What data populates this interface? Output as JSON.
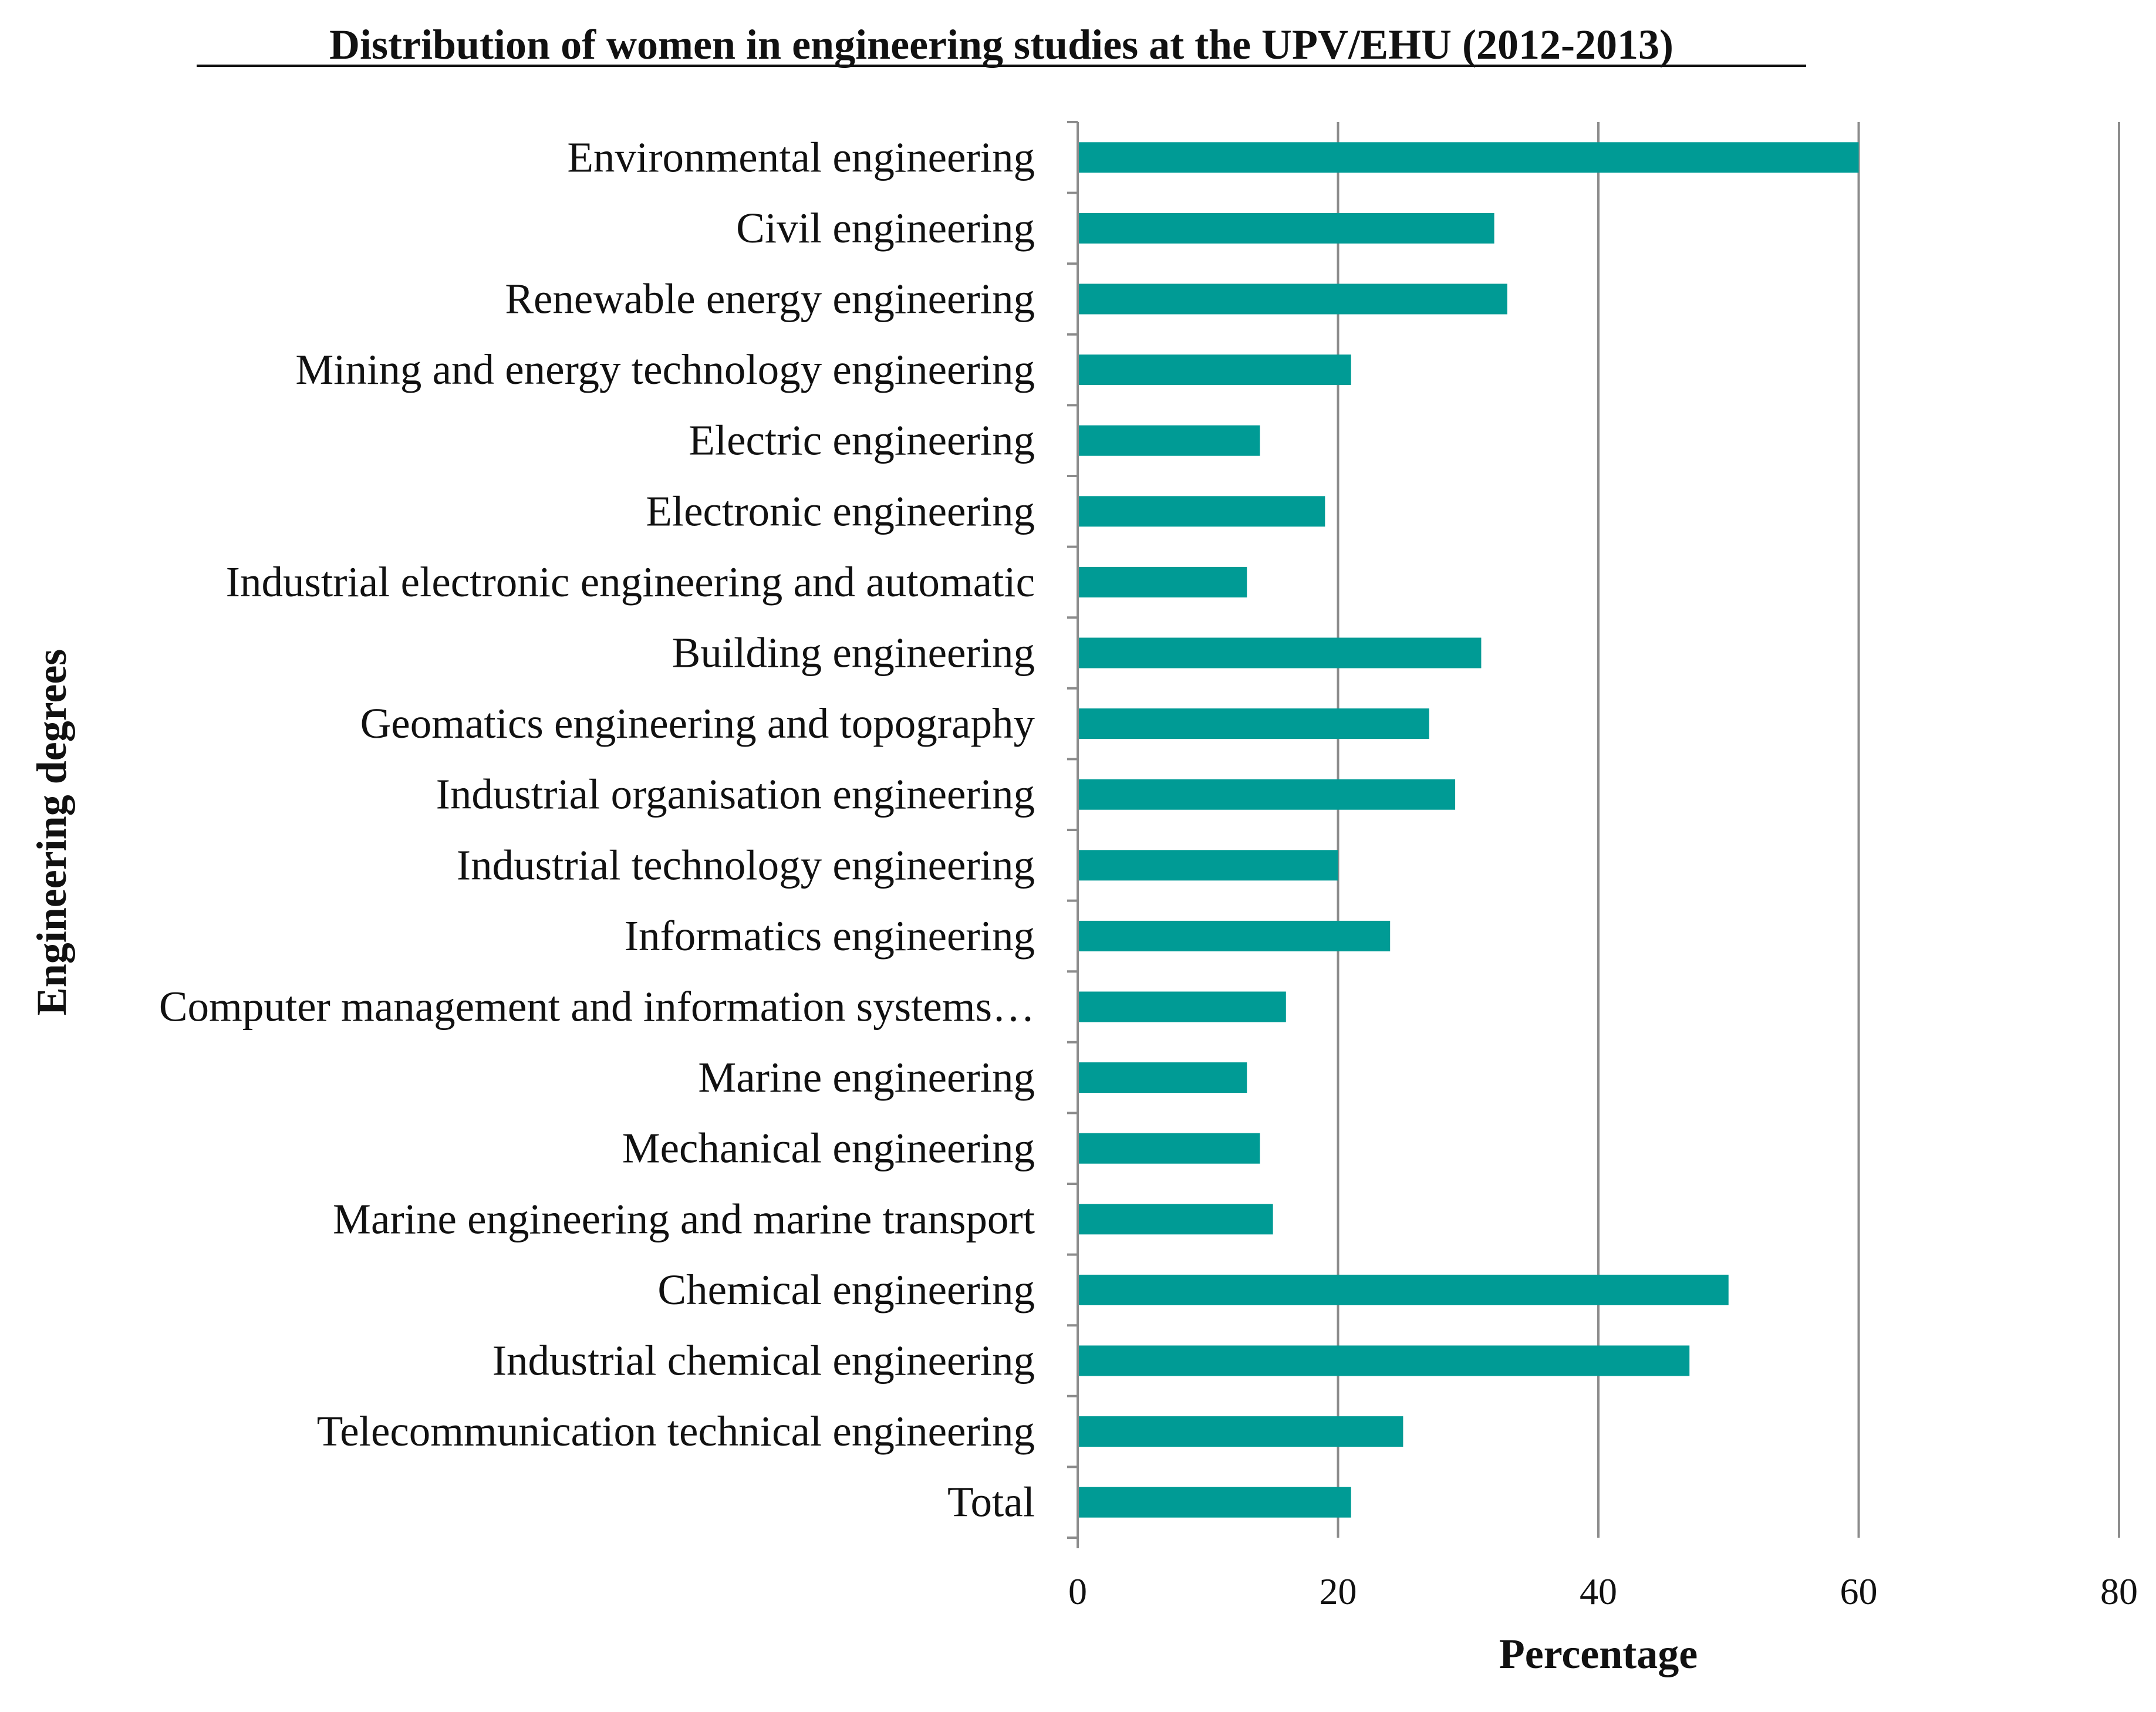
{
  "colors": {
    "bar": "#009b95",
    "grid": "#8c8c8c",
    "text": "#111111"
  },
  "chart_data": {
    "type": "bar",
    "orientation": "horizontal",
    "title": "Distribution of women in engineering studies at the UPV/EHU (2012-2013)",
    "xlabel": "Percentage",
    "ylabel": "Engineering degrees",
    "xlim": [
      0,
      80
    ],
    "xticks": [
      "0",
      "20",
      "40",
      "60",
      "80"
    ],
    "xtick_values": [
      0,
      20,
      40,
      60,
      80
    ],
    "grid": "vertical",
    "legend": "none",
    "categories": [
      "Environmental engineering",
      "Civil engineering",
      "Renewable energy engineering",
      "Mining and energy technology engineering",
      "Electric engineering",
      "Electronic engineering",
      "Industrial electronic engineering and automatic",
      "Building engineering",
      "Geomatics engineering and topography",
      "Industrial organisation engineering",
      "Industrial technology engineering",
      "Informatics engineering",
      "Computer management and information systems…",
      "Marine engineering",
      "Mechanical engineering",
      "Marine engineering and marine transport",
      "Chemical engineering",
      "Industrial chemical engineering",
      "Telecommunication technical engineering",
      "Total"
    ],
    "values": [
      60,
      32,
      33,
      21,
      14,
      19,
      13,
      31,
      27,
      29,
      20,
      24,
      16,
      13,
      14,
      15,
      50,
      47,
      25,
      21
    ]
  }
}
